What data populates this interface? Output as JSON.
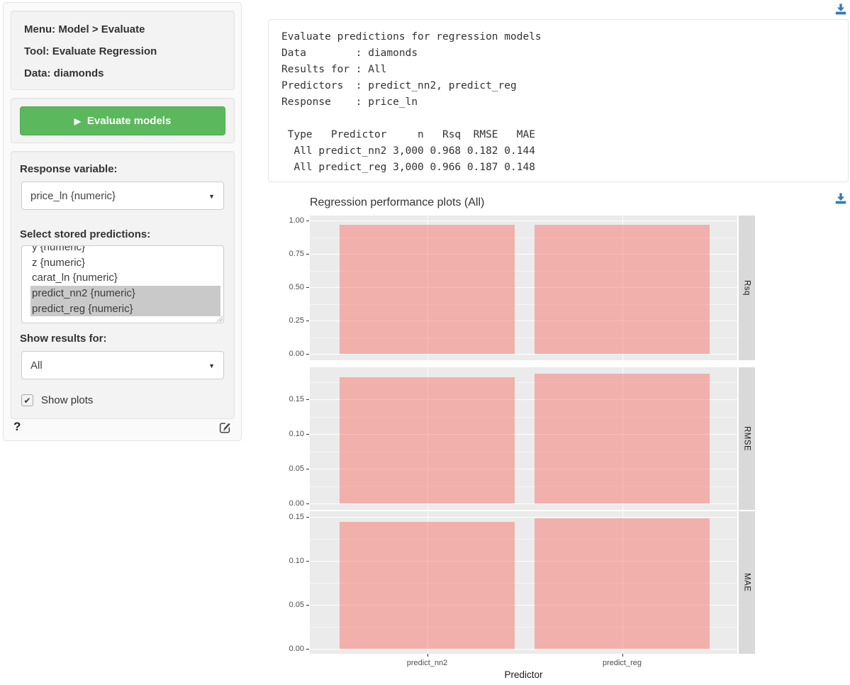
{
  "colors": {
    "accent_blue": "#337AB7",
    "button_green": "#5CB85C",
    "selected_gray": "#C9C9C9"
  },
  "icons": {
    "play": "▶",
    "caret_down": "▼",
    "check": "✔",
    "help": "?"
  },
  "sidebar": {
    "info": {
      "menu": "Menu: Model > Evaluate",
      "tool": "Tool: Evaluate Regression",
      "data": "Data: diamonds"
    },
    "evaluate_button": "Evaluate models",
    "response_variable": {
      "label": "Response variable:",
      "value": "price_ln {numeric}"
    },
    "stored_predictions": {
      "label": "Select stored predictions:",
      "items": [
        {
          "text": "y {numeric}",
          "selected": false
        },
        {
          "text": "z {numeric}",
          "selected": false
        },
        {
          "text": "carat_ln {numeric}",
          "selected": false
        },
        {
          "text": "predict_nn2 {numeric}",
          "selected": true
        },
        {
          "text": "predict_reg {numeric}",
          "selected": true
        }
      ]
    },
    "show_results": {
      "label": "Show results for:",
      "value": "All"
    },
    "show_plots": {
      "label": "Show plots",
      "checked": true
    }
  },
  "output": {
    "text": "Evaluate predictions for regression models\nData        : diamonds\nResults for : All\nPredictors  : predict_nn2, predict_reg\nResponse    : price_ln\n\n Type   Predictor     n   Rsq  RMSE   MAE\n  All predict_nn2 3,000 0.968 0.182 0.144\n  All predict_reg 3,000 0.966 0.187 0.148"
  },
  "chart_data": {
    "type": "bar",
    "title": "Regression performance plots (All)",
    "categories": [
      "predict_nn2",
      "predict_reg"
    ],
    "xlabel": "Predictor",
    "legend": "none",
    "grid": true,
    "facets": [
      {
        "label": "Rsq",
        "values": [
          0.968,
          0.966
        ],
        "ylim": [
          0,
          1.0
        ],
        "ticks": [
          "0.00",
          "0.25",
          "0.50",
          "0.75",
          "1.00"
        ],
        "minor_step": 0.125
      },
      {
        "label": "RMSE",
        "values": [
          0.182,
          0.187
        ],
        "ylim": [
          0,
          0.187
        ],
        "ticks": [
          "0.00",
          "0.05",
          "0.10",
          "0.15"
        ],
        "minor_step": 0.025
      },
      {
        "label": "MAE",
        "values": [
          0.144,
          0.148
        ],
        "ylim": [
          0,
          0.148
        ],
        "ticks": [
          "0.00",
          "0.05",
          "0.10",
          "0.15"
        ],
        "minor_step": 0.025
      }
    ],
    "colors": {
      "bar": "#F8766D",
      "bar_alpha": 0.5,
      "panel_bg": "#EBEBEB",
      "strip_bg": "#D9D9D9",
      "grid": "#FFFFFF"
    }
  }
}
